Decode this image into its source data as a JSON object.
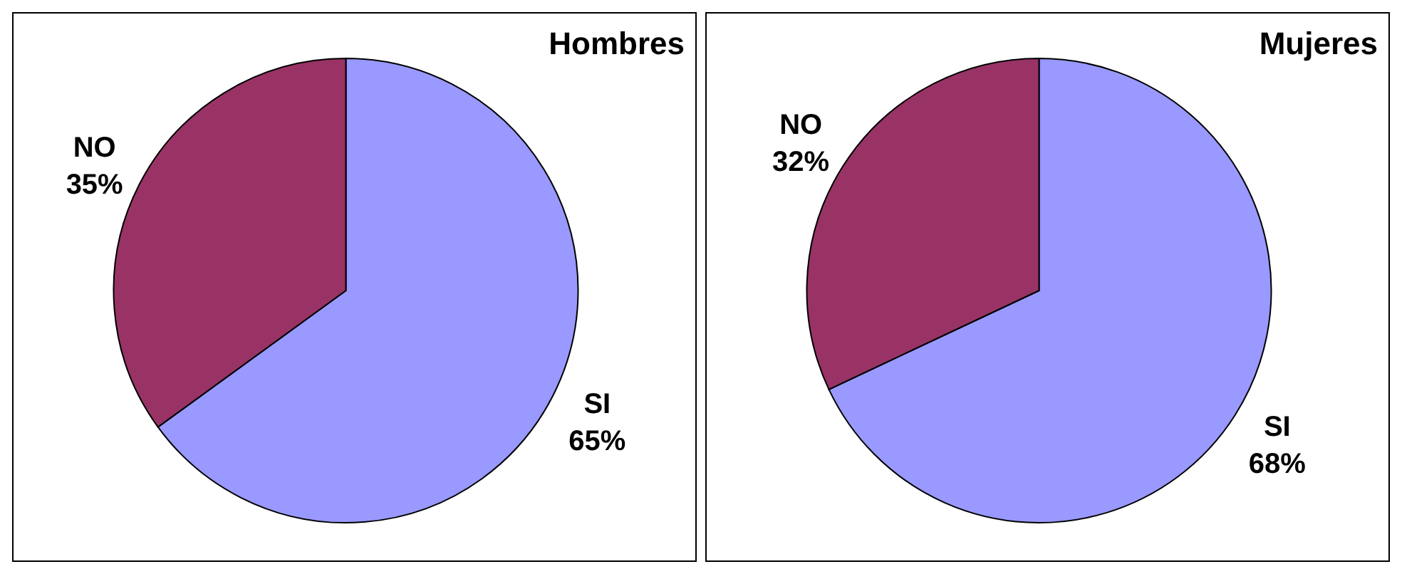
{
  "chart_data": [
    {
      "type": "pie",
      "title": "Hombres",
      "categories": [
        "SI",
        "NO"
      ],
      "values": [
        65,
        35
      ],
      "colors": [
        "#9999ff",
        "#993366"
      ],
      "value_labels": [
        "65%",
        "35%"
      ]
    },
    {
      "type": "pie",
      "title": "Mujeres",
      "categories": [
        "SI",
        "NO"
      ],
      "values": [
        68,
        32
      ],
      "colors": [
        "#9999ff",
        "#993366"
      ],
      "value_labels": [
        "68%",
        "32%"
      ]
    }
  ]
}
